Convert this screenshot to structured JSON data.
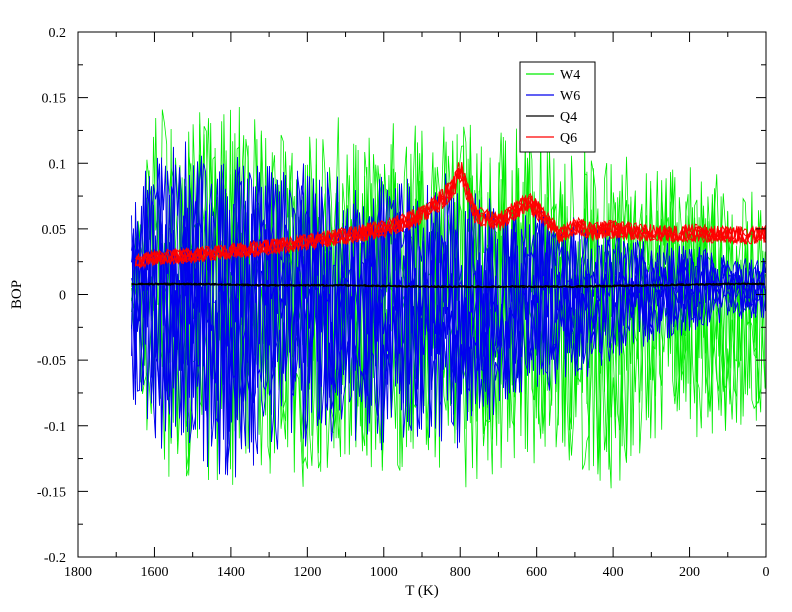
{
  "chart_data": {
    "type": "line",
    "title": "",
    "xlabel": "T (K)",
    "ylabel": "BOP",
    "xlim": [
      1800,
      0
    ],
    "ylim": [
      -0.2,
      0.2
    ],
    "x_reversed": true,
    "x_ticks": [
      1800,
      1600,
      1400,
      1200,
      1000,
      800,
      600,
      400,
      200,
      0
    ],
    "x_tick_labels": [
      "1800",
      "1600",
      "1400",
      "1200",
      "1000",
      "800",
      "600",
      "400",
      "200",
      "0"
    ],
    "y_ticks": [
      -0.2,
      -0.15,
      -0.1,
      -0.05,
      0,
      0.05,
      0.1,
      0.15,
      0.2
    ],
    "y_tick_labels": [
      "-0.2",
      "-0.15",
      "-0.1",
      "-0.05",
      "0",
      "0.05",
      "0.1",
      "0.15",
      "0.2"
    ],
    "grid": false,
    "legend_position": "top-right",
    "series": [
      {
        "name": "W4",
        "color": "#00ee00",
        "x": [
          1660,
          1600,
          1500,
          1400,
          1300,
          1200,
          1100,
          1000,
          900,
          800,
          700,
          600,
          500,
          400,
          300,
          200,
          100,
          0
        ],
        "upper": [
          0.02,
          0.15,
          0.14,
          0.15,
          0.14,
          0.13,
          0.14,
          0.13,
          0.14,
          0.13,
          0.14,
          0.13,
          0.12,
          0.11,
          0.11,
          0.1,
          0.09,
          0.08
        ],
        "lower": [
          -0.02,
          -0.15,
          -0.14,
          -0.15,
          -0.14,
          -0.15,
          -0.13,
          -0.14,
          -0.13,
          -0.15,
          -0.14,
          -0.13,
          -0.13,
          -0.15,
          -0.12,
          -0.12,
          -0.11,
          -0.1
        ]
      },
      {
        "name": "W6",
        "color": "#0000ee",
        "x": [
          1660,
          1600,
          1500,
          1400,
          1300,
          1200,
          1100,
          1000,
          900,
          800,
          700,
          600,
          500,
          400,
          300,
          200,
          100,
          0
        ],
        "upper": [
          0.08,
          0.11,
          0.12,
          0.11,
          0.1,
          0.1,
          0.09,
          0.09,
          0.1,
          0.09,
          0.07,
          0.07,
          0.06,
          0.05,
          0.04,
          0.04,
          0.03,
          0.03
        ],
        "lower": [
          -0.09,
          -0.12,
          -0.12,
          -0.15,
          -0.12,
          -0.12,
          -0.11,
          -0.12,
          -0.11,
          -0.12,
          -0.09,
          -0.08,
          -0.07,
          -0.05,
          -0.04,
          -0.03,
          -0.02,
          -0.02
        ]
      },
      {
        "name": "Q4",
        "color": "#000000",
        "x": [
          1660,
          1500,
          1300,
          1100,
          900,
          700,
          500,
          300,
          100,
          0
        ],
        "values": [
          0.008,
          0.008,
          0.007,
          0.007,
          0.006,
          0.006,
          0.006,
          0.007,
          0.008,
          0.008
        ]
      },
      {
        "name": "Q6",
        "color": "#ff0000",
        "x": [
          1650,
          1600,
          1500,
          1400,
          1300,
          1200,
          1100,
          1000,
          900,
          820,
          800,
          760,
          700,
          650,
          620,
          580,
          540,
          500,
          450,
          400,
          350,
          300,
          250,
          200,
          150,
          100,
          50,
          0
        ],
        "values": [
          0.025,
          0.028,
          0.03,
          0.033,
          0.036,
          0.04,
          0.045,
          0.05,
          0.06,
          0.08,
          0.095,
          0.06,
          0.055,
          0.065,
          0.07,
          0.06,
          0.045,
          0.052,
          0.048,
          0.05,
          0.048,
          0.047,
          0.046,
          0.047,
          0.046,
          0.046,
          0.045,
          0.046
        ]
      }
    ]
  }
}
